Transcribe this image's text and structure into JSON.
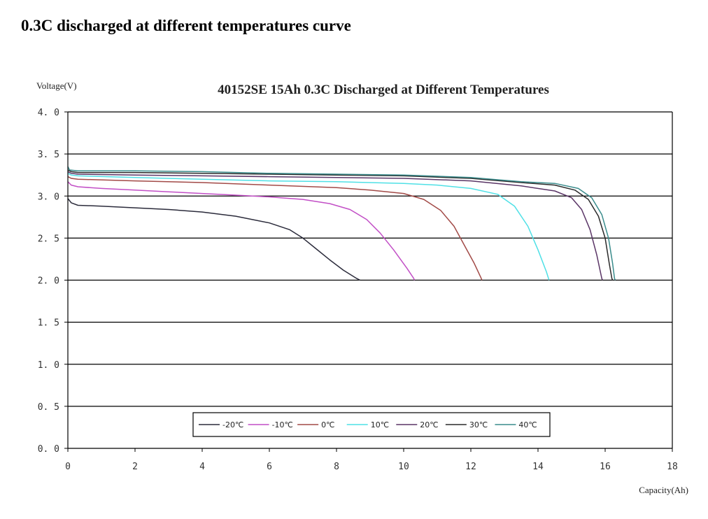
{
  "page": {
    "heading": "0.3C discharged at different temperatures curve"
  },
  "chart_data": {
    "type": "line",
    "title": "40152SE 15Ah 0.3C Discharged at Different Temperatures",
    "xlabel": "Capacity(Ah)",
    "ylabel": "Voltage(V)",
    "xlim": [
      0,
      18
    ],
    "ylim": [
      0,
      4
    ],
    "xticks": [
      0,
      2,
      4,
      6,
      8,
      10,
      12,
      14,
      16,
      18
    ],
    "xtick_labels": [
      "0",
      "2",
      "4",
      "6",
      "8",
      "10",
      "12",
      "14",
      "16",
      "18"
    ],
    "yticks": [
      0,
      0.5,
      1,
      1.5,
      2,
      2.5,
      3,
      3.5,
      4
    ],
    "ytick_labels": [
      "0. 0",
      "0. 5",
      "1. 0",
      "1. 5",
      "2. 0",
      "2. 5",
      "3. 0",
      "3. 5",
      "4. 0"
    ],
    "grid": "horizontal",
    "legend_position": "bottom-center",
    "series": [
      {
        "name": "-20℃",
        "color": "#2b2b3b",
        "points": [
          [
            0,
            2.97
          ],
          [
            0.1,
            2.92
          ],
          [
            0.3,
            2.89
          ],
          [
            1,
            2.88
          ],
          [
            2,
            2.86
          ],
          [
            3,
            2.84
          ],
          [
            4,
            2.81
          ],
          [
            5,
            2.76
          ],
          [
            6,
            2.68
          ],
          [
            6.6,
            2.6
          ],
          [
            7.0,
            2.5
          ],
          [
            7.4,
            2.37
          ],
          [
            7.8,
            2.24
          ],
          [
            8.2,
            2.12
          ],
          [
            8.6,
            2.02
          ],
          [
            8.7,
            2.0
          ]
        ]
      },
      {
        "name": "-10℃",
        "color": "#c24fc6",
        "points": [
          [
            0,
            3.17
          ],
          [
            0.1,
            3.13
          ],
          [
            0.3,
            3.11
          ],
          [
            1,
            3.09
          ],
          [
            2,
            3.07
          ],
          [
            3,
            3.05
          ],
          [
            4,
            3.03
          ],
          [
            5,
            3.01
          ],
          [
            6,
            2.99
          ],
          [
            7,
            2.96
          ],
          [
            7.8,
            2.91
          ],
          [
            8.4,
            2.84
          ],
          [
            8.9,
            2.72
          ],
          [
            9.3,
            2.56
          ],
          [
            9.7,
            2.36
          ],
          [
            10.1,
            2.14
          ],
          [
            10.3,
            2.02
          ],
          [
            10.32,
            2.0
          ]
        ]
      },
      {
        "name": "0℃",
        "color": "#a24a47",
        "points": [
          [
            0,
            3.23
          ],
          [
            0.1,
            3.21
          ],
          [
            0.3,
            3.2
          ],
          [
            2,
            3.18
          ],
          [
            4,
            3.16
          ],
          [
            6,
            3.13
          ],
          [
            8,
            3.1
          ],
          [
            9,
            3.07
          ],
          [
            10,
            3.03
          ],
          [
            10.6,
            2.96
          ],
          [
            11.1,
            2.83
          ],
          [
            11.5,
            2.64
          ],
          [
            11.8,
            2.42
          ],
          [
            12.1,
            2.2
          ],
          [
            12.3,
            2.03
          ],
          [
            12.33,
            2.0
          ]
        ]
      },
      {
        "name": "10℃",
        "color": "#4fe0e6",
        "points": [
          [
            0,
            3.27
          ],
          [
            0.1,
            3.25
          ],
          [
            0.3,
            3.24
          ],
          [
            2,
            3.22
          ],
          [
            4,
            3.2
          ],
          [
            6,
            3.18
          ],
          [
            8,
            3.17
          ],
          [
            10,
            3.15
          ],
          [
            11,
            3.13
          ],
          [
            12,
            3.09
          ],
          [
            12.8,
            3.02
          ],
          [
            13.3,
            2.88
          ],
          [
            13.7,
            2.64
          ],
          [
            14.0,
            2.36
          ],
          [
            14.25,
            2.1
          ],
          [
            14.33,
            2.0
          ]
        ]
      },
      {
        "name": "20℃",
        "color": "#5a3566",
        "points": [
          [
            0,
            3.29
          ],
          [
            0.1,
            3.27
          ],
          [
            0.3,
            3.26
          ],
          [
            2,
            3.25
          ],
          [
            4,
            3.24
          ],
          [
            6,
            3.23
          ],
          [
            8,
            3.22
          ],
          [
            10,
            3.21
          ],
          [
            12,
            3.18
          ],
          [
            13.5,
            3.12
          ],
          [
            14.5,
            3.06
          ],
          [
            15.0,
            2.98
          ],
          [
            15.3,
            2.84
          ],
          [
            15.55,
            2.6
          ],
          [
            15.75,
            2.3
          ],
          [
            15.9,
            2.02
          ],
          [
            15.92,
            2.0
          ]
        ]
      },
      {
        "name": "30℃",
        "color": "#2a2a2a",
        "points": [
          [
            0,
            3.31
          ],
          [
            0.1,
            3.29
          ],
          [
            0.3,
            3.28
          ],
          [
            2,
            3.28
          ],
          [
            4,
            3.27
          ],
          [
            6,
            3.26
          ],
          [
            8,
            3.25
          ],
          [
            10,
            3.24
          ],
          [
            12,
            3.21
          ],
          [
            13.5,
            3.16
          ],
          [
            14.5,
            3.13
          ],
          [
            15.1,
            3.07
          ],
          [
            15.5,
            2.96
          ],
          [
            15.8,
            2.76
          ],
          [
            16.0,
            2.5
          ],
          [
            16.12,
            2.2
          ],
          [
            16.2,
            2.02
          ],
          [
            16.22,
            2.0
          ]
        ]
      },
      {
        "name": "40℃",
        "color": "#3a8c8c",
        "points": [
          [
            0,
            3.35
          ],
          [
            0.05,
            3.31
          ],
          [
            0.3,
            3.3
          ],
          [
            2,
            3.3
          ],
          [
            4,
            3.29
          ],
          [
            6,
            3.27
          ],
          [
            8,
            3.26
          ],
          [
            10,
            3.25
          ],
          [
            12,
            3.22
          ],
          [
            13.5,
            3.17
          ],
          [
            14.5,
            3.15
          ],
          [
            15.2,
            3.09
          ],
          [
            15.6,
            2.98
          ],
          [
            15.9,
            2.78
          ],
          [
            16.1,
            2.5
          ],
          [
            16.22,
            2.2
          ],
          [
            16.28,
            2.02
          ],
          [
            16.3,
            2.0
          ]
        ]
      }
    ]
  }
}
